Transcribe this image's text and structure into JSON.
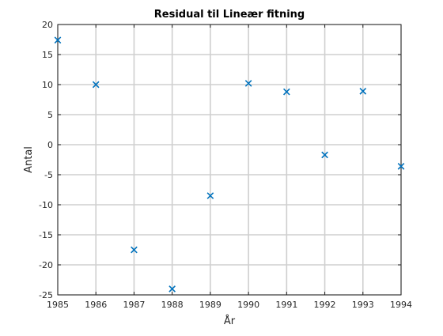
{
  "chart_data": {
    "type": "scatter",
    "title": "Residual til Lineær fitning",
    "xlabel": "År",
    "ylabel": "Antal",
    "xlim": [
      1985,
      1994
    ],
    "ylim": [
      -25,
      20
    ],
    "xticks": [
      1985,
      1986,
      1987,
      1988,
      1989,
      1990,
      1991,
      1992,
      1993,
      1994
    ],
    "yticks": [
      -25,
      -20,
      -15,
      -10,
      -5,
      0,
      5,
      10,
      15,
      20
    ],
    "grid": true,
    "marker": "x",
    "series": [
      {
        "color": "#0072BD",
        "x": [
          1985,
          1986,
          1987,
          1988,
          1989,
          1990,
          1991,
          1992,
          1993,
          1994
        ],
        "y": [
          17.4,
          10.0,
          -17.5,
          -24.0,
          -8.5,
          10.2,
          8.8,
          -1.7,
          8.9,
          -3.6
        ]
      }
    ]
  }
}
